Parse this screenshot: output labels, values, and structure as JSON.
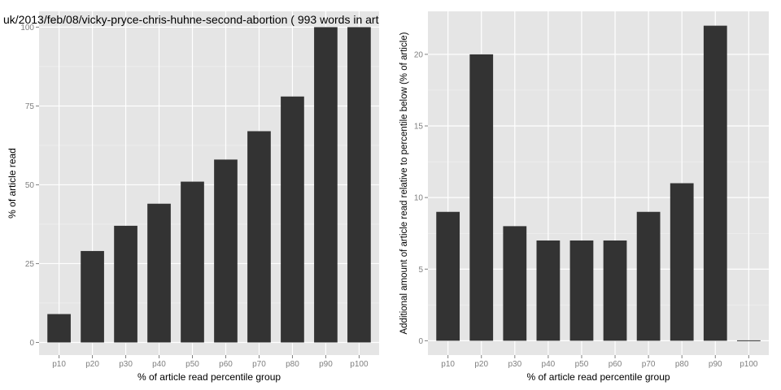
{
  "chart_data": [
    {
      "type": "bar",
      "title": "uk/2013/feb/08/vicky-pryce-chris-huhne-second-abortion ( 993 words in art",
      "xlabel": "% of article read percentile group",
      "ylabel": "% of article read",
      "categories": [
        "p10",
        "p20",
        "p30",
        "p40",
        "p50",
        "p60",
        "p70",
        "p80",
        "p90",
        "p100"
      ],
      "values": [
        9,
        29,
        37,
        44,
        51,
        58,
        67,
        78,
        100,
        100
      ],
      "ylim": [
        -4,
        105
      ],
      "yticks": [
        0,
        25,
        50,
        75,
        100
      ],
      "grid": true,
      "colors": {
        "bar": "#333333",
        "panel": "#e5e5e5",
        "grid_major": "#ffffff",
        "grid_minor": "#f2f2f2"
      }
    },
    {
      "type": "bar",
      "title": "",
      "xlabel": "% of article read percentile group",
      "ylabel": "Additional amount of article read relative to percentile below (% of article)",
      "categories": [
        "p10",
        "p20",
        "p30",
        "p40",
        "p50",
        "p60",
        "p70",
        "p80",
        "p90",
        "p100"
      ],
      "values": [
        9,
        20,
        8,
        7,
        7,
        7,
        9,
        11,
        22,
        0
      ],
      "ylim": [
        -1,
        23
      ],
      "yticks": [
        0,
        5,
        10,
        15,
        20
      ],
      "grid": true,
      "colors": {
        "bar": "#333333",
        "panel": "#e5e5e5",
        "grid_major": "#ffffff",
        "grid_minor": "#f2f2f2"
      }
    }
  ]
}
